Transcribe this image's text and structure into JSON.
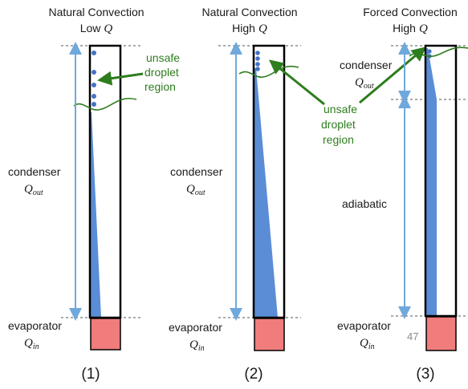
{
  "panels": [
    {
      "title_line1": "Natural Convection",
      "title_line2": "Low",
      "title_var": "Q",
      "condenser_label": "condenser",
      "condenser_var": "Q",
      "condenser_sub": "out",
      "evaporator_label": "evaporator",
      "evaporator_var": "Q",
      "evaporator_sub": "in",
      "number": "(1)"
    },
    {
      "title_line1": "Natural Convection",
      "title_line2": "High",
      "title_var": "Q",
      "condenser_label": "condenser",
      "condenser_var": "Q",
      "condenser_sub": "out",
      "evaporator_label": "evaporator",
      "evaporator_var": "Q",
      "evaporator_sub": "in",
      "number": "(2)"
    },
    {
      "title_line1": "Forced Convection",
      "title_line2": "High",
      "title_var": "Q",
      "condenser_label": "condenser",
      "condenser_var": "Q",
      "condenser_sub": "out",
      "adiabatic_label": "adiabatic",
      "evaporator_label": "evaporator",
      "evaporator_var": "Q",
      "evaporator_sub": "in",
      "number": "(3)"
    }
  ],
  "annotations": {
    "unsafe_1": [
      "unsafe",
      "droplet",
      "region"
    ],
    "unsafe_2": [
      "unsafe",
      "droplet",
      "region"
    ]
  },
  "page_number": "47",
  "colors": {
    "tube_outline": "#000000",
    "liquid_fill": "#5b8dd6",
    "droplet": "#4472c4",
    "arrow_blue": "#6fa8dc",
    "evaporator_fill": "#f07c7c",
    "annotation_green": "#2e7d1e",
    "dashed_line": "#555555"
  }
}
